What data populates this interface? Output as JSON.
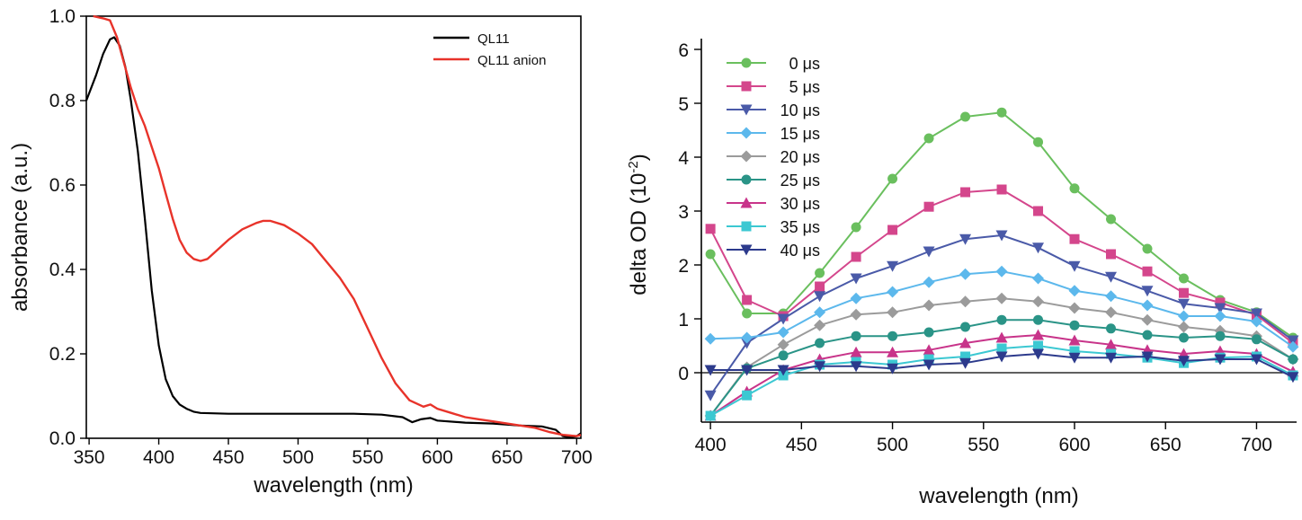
{
  "chart_data": [
    {
      "type": "line",
      "title": "",
      "xlabel": "wavelength (nm)",
      "ylabel": "absorbance (a.u.)",
      "xlim": [
        348,
        703
      ],
      "ylim": [
        0,
        1.0
      ],
      "xticks": [
        350,
        400,
        450,
        500,
        550,
        600,
        650,
        700
      ],
      "yticks": [
        0.0,
        0.2,
        0.4,
        0.6,
        0.8,
        1.0
      ],
      "xtick_labels": [
        "350",
        "400",
        "450",
        "500",
        "550",
        "600",
        "650",
        "700"
      ],
      "ytick_labels": [
        "0.0",
        "0.2",
        "0.4",
        "0.6",
        "0.8",
        "1.0"
      ],
      "legend_position": "top-right",
      "grid": false,
      "series": [
        {
          "name": "QL11",
          "color": "#000000",
          "points": [
            [
              348,
              0.8
            ],
            [
              355,
              0.86
            ],
            [
              360,
              0.91
            ],
            [
              365,
              0.945
            ],
            [
              368,
              0.95
            ],
            [
              372,
              0.93
            ],
            [
              376,
              0.88
            ],
            [
              380,
              0.8
            ],
            [
              385,
              0.68
            ],
            [
              390,
              0.52
            ],
            [
              395,
              0.35
            ],
            [
              400,
              0.22
            ],
            [
              405,
              0.14
            ],
            [
              410,
              0.1
            ],
            [
              415,
              0.08
            ],
            [
              420,
              0.07
            ],
            [
              425,
              0.063
            ],
            [
              430,
              0.06
            ],
            [
              450,
              0.058
            ],
            [
              500,
              0.058
            ],
            [
              540,
              0.058
            ],
            [
              560,
              0.056
            ],
            [
              575,
              0.05
            ],
            [
              582,
              0.038
            ],
            [
              588,
              0.045
            ],
            [
              595,
              0.048
            ],
            [
              600,
              0.042
            ],
            [
              620,
              0.037
            ],
            [
              640,
              0.035
            ],
            [
              660,
              0.03
            ],
            [
              675,
              0.028
            ],
            [
              685,
              0.02
            ],
            [
              690,
              0.005
            ],
            [
              695,
              0.002
            ],
            [
              700,
              0.005
            ],
            [
              703,
              0.012
            ]
          ]
        },
        {
          "name": "QL11 anion",
          "color": "#e8332a",
          "points": [
            [
              353,
              1.0
            ],
            [
              360,
              0.995
            ],
            [
              365,
              0.99
            ],
            [
              370,
              0.95
            ],
            [
              375,
              0.89
            ],
            [
              380,
              0.83
            ],
            [
              385,
              0.78
            ],
            [
              390,
              0.74
            ],
            [
              395,
              0.69
            ],
            [
              400,
              0.64
            ],
            [
              405,
              0.58
            ],
            [
              410,
              0.52
            ],
            [
              415,
              0.47
            ],
            [
              420,
              0.44
            ],
            [
              425,
              0.425
            ],
            [
              430,
              0.42
            ],
            [
              435,
              0.425
            ],
            [
              440,
              0.44
            ],
            [
              450,
              0.47
            ],
            [
              460,
              0.495
            ],
            [
              470,
              0.51
            ],
            [
              475,
              0.515
            ],
            [
              480,
              0.515
            ],
            [
              490,
              0.505
            ],
            [
              500,
              0.485
            ],
            [
              510,
              0.46
            ],
            [
              520,
              0.42
            ],
            [
              530,
              0.38
            ],
            [
              540,
              0.33
            ],
            [
              550,
              0.26
            ],
            [
              560,
              0.19
            ],
            [
              570,
              0.13
            ],
            [
              580,
              0.09
            ],
            [
              590,
              0.075
            ],
            [
              595,
              0.08
            ],
            [
              600,
              0.07
            ],
            [
              610,
              0.06
            ],
            [
              620,
              0.05
            ],
            [
              630,
              0.045
            ],
            [
              640,
              0.04
            ],
            [
              650,
              0.035
            ],
            [
              660,
              0.03
            ],
            [
              670,
              0.025
            ],
            [
              680,
              0.015
            ],
            [
              690,
              0.008
            ],
            [
              700,
              0.005
            ],
            [
              703,
              0.008
            ]
          ]
        }
      ]
    },
    {
      "type": "line",
      "title": "",
      "xlabel": "wavelength (nm)",
      "ylabel": "delta OD (10",
      "ylabel_exponent": "-2",
      "ylabel_suffix": ")",
      "xlim": [
        395,
        722
      ],
      "ylim": [
        -0.9,
        6.2
      ],
      "xticks": [
        400,
        450,
        500,
        550,
        600,
        650,
        700
      ],
      "yticks": [
        0,
        1,
        2,
        3,
        4,
        5,
        6
      ],
      "xtick_labels": [
        "400",
        "450",
        "500",
        "550",
        "600",
        "650",
        "700"
      ],
      "ytick_labels": [
        "0",
        "1",
        "2",
        "3",
        "4",
        "5",
        "6"
      ],
      "legend_position": "top-left",
      "grid": false,
      "zero_line": true,
      "x": [
        400,
        420,
        440,
        460,
        480,
        500,
        520,
        540,
        560,
        580,
        600,
        620,
        640,
        660,
        680,
        700,
        720
      ],
      "series": [
        {
          "name": "0 μs",
          "color": "#6abf5e",
          "marker": "circle",
          "values": [
            2.2,
            1.1,
            1.1,
            1.85,
            2.7,
            3.6,
            4.35,
            4.75,
            4.83,
            4.28,
            3.42,
            2.85,
            2.3,
            1.75,
            1.35,
            1.12,
            0.65
          ]
        },
        {
          "name": "5 μs",
          "color": "#d4468c",
          "marker": "square",
          "values": [
            2.67,
            1.35,
            1.05,
            1.6,
            2.15,
            2.65,
            3.08,
            3.35,
            3.4,
            3.0,
            2.48,
            2.2,
            1.88,
            1.48,
            1.3,
            1.07,
            0.55
          ]
        },
        {
          "name": "10 μs",
          "color": "#4a5aa8",
          "marker": "triangle-down",
          "values": [
            -0.42,
            0.55,
            1.0,
            1.42,
            1.75,
            1.98,
            2.25,
            2.48,
            2.55,
            2.32,
            1.98,
            1.78,
            1.52,
            1.28,
            1.2,
            1.1,
            0.6
          ]
        },
        {
          "name": "15 μs",
          "color": "#5cb8ec",
          "marker": "diamond",
          "values": [
            0.63,
            0.65,
            0.75,
            1.12,
            1.38,
            1.5,
            1.68,
            1.83,
            1.88,
            1.75,
            1.52,
            1.42,
            1.25,
            1.05,
            1.05,
            0.95,
            0.48
          ]
        },
        {
          "name": "20 μs",
          "color": "#9b9b9b",
          "marker": "diamond",
          "values": [
            -0.8,
            0.1,
            0.52,
            0.88,
            1.08,
            1.12,
            1.25,
            1.32,
            1.38,
            1.32,
            1.2,
            1.12,
            0.98,
            0.85,
            0.78,
            0.68,
            0.25
          ]
        },
        {
          "name": "25 μs",
          "color": "#2a9487",
          "marker": "circle",
          "values": [
            -0.8,
            0.08,
            0.32,
            0.55,
            0.68,
            0.68,
            0.75,
            0.85,
            0.98,
            0.98,
            0.88,
            0.82,
            0.7,
            0.65,
            0.68,
            0.62,
            0.25
          ]
        },
        {
          "name": "30 μs",
          "color": "#c8348a",
          "marker": "triangle-up",
          "values": [
            -0.8,
            -0.35,
            0.05,
            0.25,
            0.38,
            0.38,
            0.42,
            0.55,
            0.65,
            0.7,
            0.6,
            0.52,
            0.42,
            0.35,
            0.4,
            0.35,
            0.02
          ]
        },
        {
          "name": "35 μs",
          "color": "#3cc8d2",
          "marker": "square",
          "values": [
            -0.8,
            -0.42,
            -0.05,
            0.15,
            0.2,
            0.15,
            0.25,
            0.3,
            0.45,
            0.5,
            0.4,
            0.35,
            0.28,
            0.18,
            0.28,
            0.3,
            -0.05
          ]
        },
        {
          "name": "40 μs",
          "color": "#2c3a8c",
          "marker": "triangle-down",
          "values": [
            0.05,
            0.05,
            0.05,
            0.12,
            0.12,
            0.08,
            0.15,
            0.18,
            0.3,
            0.35,
            0.28,
            0.28,
            0.3,
            0.22,
            0.25,
            0.25,
            -0.08
          ]
        }
      ]
    }
  ]
}
